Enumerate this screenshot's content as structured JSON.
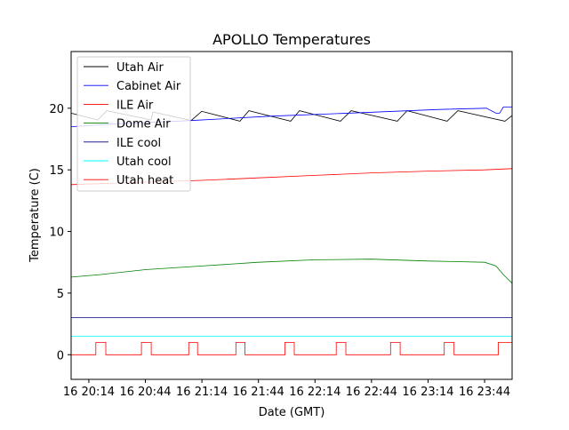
{
  "chart_data": {
    "type": "line",
    "title": "APOLLO Temperatures",
    "xlabel": "Date (GMT)",
    "ylabel": "Temperature (C)",
    "xlim_minutes_after_2000": [
      4.6,
      238.6
    ],
    "ylim": [
      -2.0,
      24.6
    ],
    "grid": false,
    "legend_placement": "top-left",
    "x_ticks": [
      {
        "value": 14,
        "label": "16 20:14"
      },
      {
        "value": 44,
        "label": "16 20:44"
      },
      {
        "value": 74,
        "label": "16 21:14"
      },
      {
        "value": 104,
        "label": "16 21:44"
      },
      {
        "value": 134,
        "label": "16 22:14"
      },
      {
        "value": 164,
        "label": "16 22:44"
      },
      {
        "value": 194,
        "label": "16 23:14"
      },
      {
        "value": 224,
        "label": "16 23:44"
      }
    ],
    "y_ticks": [
      {
        "value": 0,
        "label": "0"
      },
      {
        "value": 5,
        "label": "5"
      },
      {
        "value": 10,
        "label": "10"
      },
      {
        "value": 15,
        "label": "15"
      },
      {
        "value": 20,
        "label": "20"
      }
    ],
    "series": [
      {
        "name": "Utah Air",
        "color": "#000000",
        "x": [
          4.6,
          18.8,
          23.5,
          47,
          48,
          68.3,
          73.9,
          94.2,
          98.9,
          121.1,
          125.8,
          147.5,
          153.2,
          177.7,
          182.9,
          204.1,
          209.8,
          234.8,
          238.6
        ],
        "y": [
          19.6,
          19.05,
          19.8,
          19.05,
          19.7,
          19.0,
          19.75,
          18.95,
          19.8,
          18.95,
          19.8,
          18.95,
          19.8,
          18.95,
          19.8,
          18.95,
          19.8,
          18.95,
          19.4
        ]
      },
      {
        "name": "Cabinet Air",
        "color": "#0000ff",
        "x": [
          4.6,
          30,
          68,
          110,
          160,
          200,
          225,
          230,
          232,
          234,
          238.6
        ],
        "y": [
          18.5,
          18.75,
          19.0,
          19.35,
          19.65,
          19.9,
          20.0,
          19.6,
          19.6,
          20.1,
          20.1
        ]
      },
      {
        "name": "ILE Air",
        "color": "#ff0000",
        "x": [
          4.6,
          44,
          74,
          104,
          134,
          164,
          194,
          224,
          238.6
        ],
        "y": [
          13.8,
          14.0,
          14.15,
          14.35,
          14.55,
          14.75,
          14.9,
          15.0,
          15.1
        ]
      },
      {
        "name": "Dome Air",
        "color": "#008000",
        "x": [
          4.6,
          20,
          44,
          74,
          104,
          134,
          164,
          194,
          224,
          230,
          234,
          238.6
        ],
        "y": [
          6.3,
          6.5,
          6.9,
          7.2,
          7.5,
          7.7,
          7.75,
          7.6,
          7.5,
          7.2,
          6.5,
          5.8
        ]
      },
      {
        "name": "ILE cool",
        "color": "#000080",
        "x": [
          4.6,
          238.6
        ],
        "y": [
          3.0,
          3.0
        ]
      },
      {
        "name": "Utah cool",
        "color": "#00ffff",
        "x": [
          4.6,
          238.6
        ],
        "y": [
          1.5,
          1.5
        ]
      },
      {
        "name": "Utah heat",
        "color": "#ff0000",
        "step": true,
        "on_intervals": [
          [
            17.7,
            23.0
          ],
          [
            41.9,
            47.1
          ],
          [
            67.0,
            71.7
          ],
          [
            92.0,
            96.9
          ],
          [
            118.1,
            123.0
          ],
          [
            145.3,
            150.4
          ],
          [
            174.1,
            179.2
          ],
          [
            202.6,
            207.8
          ],
          [
            231.3,
            238.6
          ]
        ],
        "on_value": 1,
        "off_value": 0
      }
    ]
  }
}
